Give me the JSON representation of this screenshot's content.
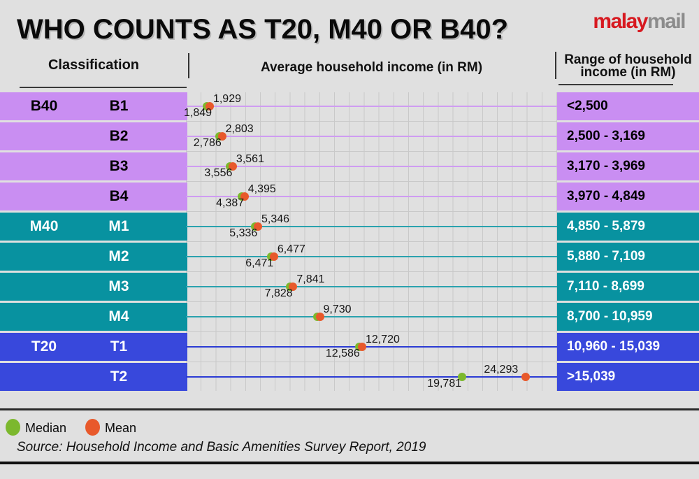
{
  "title": "WHO COUNTS AS T20, M40 OR B40?",
  "logo": {
    "red_part": "malay",
    "gray_part": "mail",
    "red_color": "#d71920",
    "gray_color": "#8c8c8c"
  },
  "column_headers": {
    "classification": "Classification",
    "average": "Average household income (in RM)",
    "range_line1": "Range of household",
    "range_line2": "income (in RM)"
  },
  "legend": {
    "median_label": "Median",
    "median_color": "#7cb82e",
    "mean_label": "Mean",
    "mean_color": "#e8592b"
  },
  "source": "Source: Household Income and Basic Amenities Survey Report, 2019",
  "chart_data": {
    "type": "scatter",
    "title": "Average household income (in RM)",
    "x_unit": "RM",
    "x_range": [
      0,
      26000
    ],
    "gridline_step": 1000,
    "grid": true,
    "legend_entries": [
      "Median",
      "Mean"
    ],
    "dot_colors": {
      "median": "#7cb82e",
      "mean": "#e8592b"
    },
    "groups": {
      "B40": {
        "band": "#c98ef2",
        "line": "#cf9cf2",
        "text": "#000000"
      },
      "M40": {
        "band": "#0892a0",
        "line": "#2aa2ae",
        "text": "#ffffff"
      },
      "T20": {
        "band": "#3848dc",
        "line": "#2b3bd4",
        "text": "#ffffff"
      }
    },
    "rows": [
      {
        "group": "B40",
        "show_group_label": true,
        "label": "B1",
        "median": 1849,
        "median_label": "1,849",
        "mean": 1929,
        "mean_label": "1,929",
        "range": "<2,500"
      },
      {
        "group": "B40",
        "show_group_label": false,
        "label": "B2",
        "median": 2786,
        "median_label": "2,786",
        "mean": 2803,
        "mean_label": "2,803",
        "range": "2,500 - 3,169"
      },
      {
        "group": "B40",
        "show_group_label": false,
        "label": "B3",
        "median": 3556,
        "median_label": "3,556",
        "mean": 3561,
        "mean_label": "3,561",
        "range": "3,170 - 3,969"
      },
      {
        "group": "B40",
        "show_group_label": false,
        "label": "B4",
        "median": 4387,
        "median_label": "4,387",
        "mean": 4395,
        "mean_label": "4,395",
        "range": "3,970 - 4,849"
      },
      {
        "group": "M40",
        "show_group_label": true,
        "label": "M1",
        "median": 5336,
        "median_label": "5,336",
        "mean": 5346,
        "mean_label": "5,346",
        "range": "4,850 - 5,879"
      },
      {
        "group": "M40",
        "show_group_label": false,
        "label": "M2",
        "median": 6471,
        "median_label": "6,471",
        "mean": 6477,
        "mean_label": "6,477",
        "range": "5,880 - 7,109"
      },
      {
        "group": "M40",
        "show_group_label": false,
        "label": "M3",
        "median": 7828,
        "median_label": "7,828",
        "mean": 7841,
        "mean_label": "7,841",
        "range": "7,110 - 8,699"
      },
      {
        "group": "M40",
        "show_group_label": false,
        "label": "M4",
        "median": null,
        "median_label": "",
        "mean": 9730,
        "mean_label": "9,730",
        "range": "8,700 - 10,959"
      },
      {
        "group": "T20",
        "show_group_label": true,
        "label": "T1",
        "median": 12586,
        "median_label": "12,586",
        "mean": 12720,
        "mean_label": "12,720",
        "range": "10,960 - 15,039"
      },
      {
        "group": "T20",
        "show_group_label": false,
        "label": "T2",
        "median": 19781,
        "median_label": "19,781",
        "mean": 24293,
        "mean_label": "24,293",
        "range": ">15,039"
      }
    ]
  }
}
